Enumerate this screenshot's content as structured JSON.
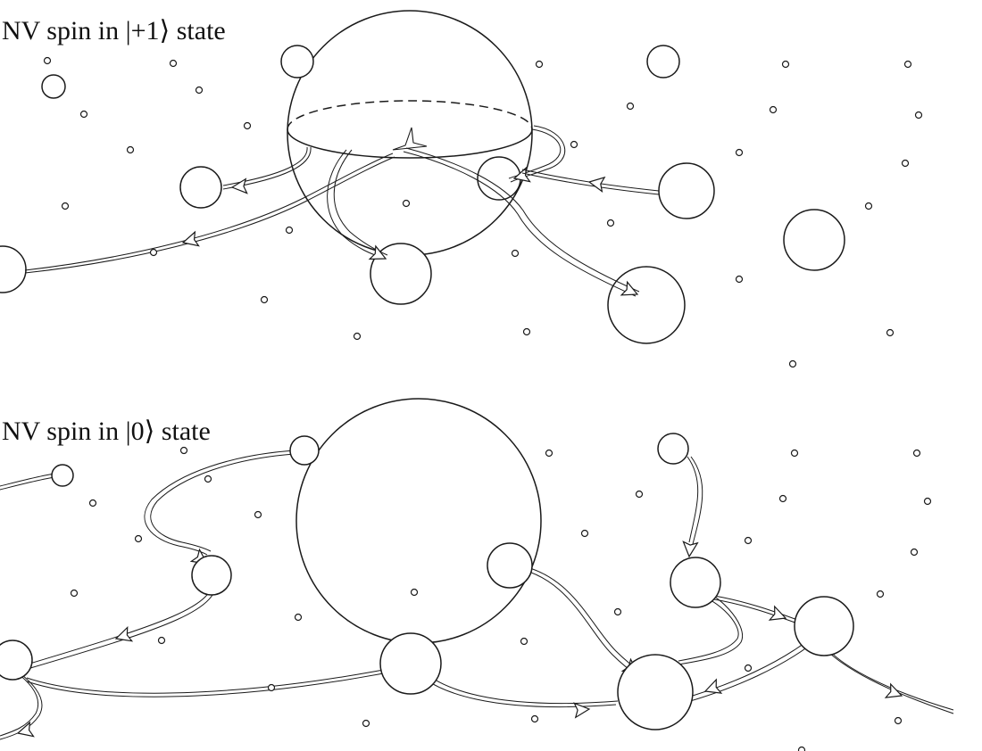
{
  "panels": [
    {
      "label": "NV spin in |+1⟩ state"
    },
    {
      "label": "NV spin in |0⟩ state"
    }
  ],
  "colors": {
    "stroke": "#1a1a1a",
    "background": "#ffffff"
  }
}
